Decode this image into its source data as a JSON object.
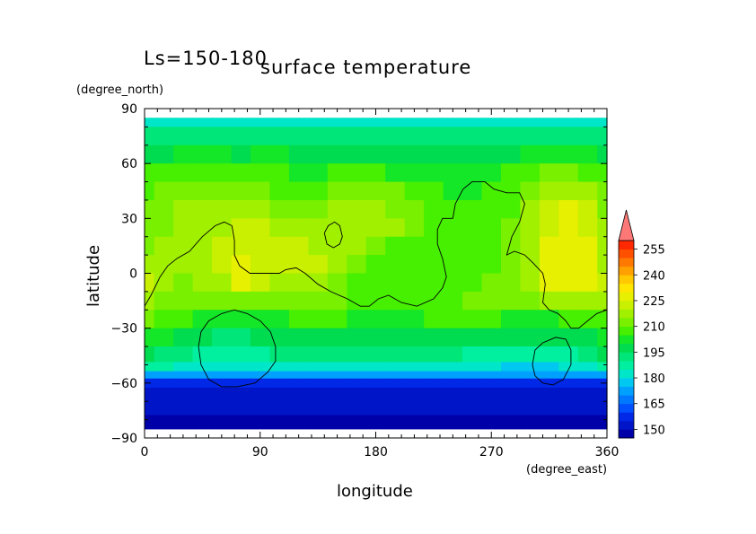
{
  "chart_data": {
    "type": "heatmap",
    "panel_label": "Ls=150-180",
    "title": "surface temperature",
    "xlabel": "longitude",
    "ylabel": "latitude",
    "x_unit": "(degree_east)",
    "y_unit": "(degree_north)",
    "xlim": [
      0,
      360
    ],
    "ylim": [
      -90,
      90
    ],
    "x_ticks": [
      0,
      90,
      180,
      270,
      360
    ],
    "y_ticks": [
      90,
      60,
      30,
      0,
      -30,
      -60,
      -90
    ],
    "lon": [
      0,
      15,
      30,
      45,
      60,
      75,
      90,
      105,
      120,
      135,
      150,
      165,
      180,
      195,
      210,
      225,
      240,
      255,
      270,
      285,
      300,
      315,
      330,
      345,
      360
    ],
    "lat": [
      85,
      75,
      65,
      55,
      45,
      35,
      25,
      15,
      5,
      -5,
      -15,
      -25,
      -35,
      -45,
      -52,
      -55,
      -60,
      -65,
      -70,
      -75,
      -80,
      -85
    ],
    "values": [
      [
        184,
        184,
        184,
        184,
        184,
        184,
        184,
        184,
        184,
        184,
        184,
        184,
        184,
        184,
        184,
        184,
        184,
        184,
        184,
        184,
        184,
        184,
        184,
        184,
        184
      ],
      [
        191,
        191,
        192,
        192,
        191,
        190,
        191,
        191,
        191,
        191,
        191,
        191,
        191,
        191,
        191,
        191,
        191,
        191,
        191,
        191,
        191,
        192,
        192,
        191,
        191
      ],
      [
        198,
        199,
        200,
        201,
        200,
        199,
        201,
        200,
        198,
        197,
        198,
        199,
        198,
        197,
        197,
        198,
        199,
        198,
        197,
        198,
        200,
        202,
        202,
        200,
        198
      ],
      [
        205,
        206,
        207,
        208,
        206,
        205,
        206,
        206,
        204,
        203,
        205,
        207,
        205,
        204,
        203,
        203,
        202,
        203,
        203,
        205,
        208,
        210,
        212,
        209,
        206
      ],
      [
        209,
        210,
        212,
        213,
        212,
        211,
        211,
        209,
        208,
        207,
        211,
        213,
        212,
        210,
        207,
        205,
        204,
        204,
        205,
        208,
        213,
        217,
        219,
        215,
        211
      ],
      [
        211,
        213,
        215,
        216,
        216,
        217,
        216,
        214,
        211,
        212,
        215,
        216,
        216,
        213,
        210,
        207,
        205,
        205,
        206,
        209,
        216,
        222,
        226,
        221,
        214
      ],
      [
        212,
        214,
        216,
        217,
        219,
        221,
        220,
        219,
        217,
        217,
        215,
        219,
        219,
        215,
        212,
        208,
        206,
        205,
        207,
        211,
        217,
        224,
        228,
        224,
        216
      ],
      [
        214,
        215,
        216,
        217,
        220,
        223,
        222,
        222,
        220,
        219,
        216,
        215,
        212,
        209,
        207,
        207,
        206,
        206,
        207,
        211,
        217,
        225,
        229,
        225,
        217
      ],
      [
        217,
        216,
        216,
        217,
        220,
        225,
        224,
        222,
        221,
        220,
        216,
        210,
        207,
        206,
        206,
        207,
        207,
        207,
        208,
        212,
        219,
        226,
        229,
        226,
        218
      ],
      [
        222,
        216,
        214,
        215,
        219,
        225,
        221,
        217,
        217,
        218,
        214,
        208,
        205,
        205,
        206,
        207,
        208,
        209,
        210,
        213,
        219,
        225,
        228,
        225,
        220
      ],
      [
        218,
        212,
        210,
        211,
        213,
        212,
        212,
        211,
        211,
        212,
        210,
        208,
        206,
        206,
        207,
        208,
        209,
        210,
        211,
        212,
        214,
        217,
        218,
        217,
        216
      ],
      [
        211,
        207,
        205,
        203,
        201,
        201,
        203,
        204,
        205,
        205,
        205,
        204,
        203,
        203,
        204,
        205,
        205,
        205,
        205,
        204,
        203,
        204,
        205,
        207,
        209
      ],
      [
        203,
        200,
        198,
        195,
        194,
        194,
        195,
        197,
        199,
        199,
        199,
        199,
        198,
        198,
        199,
        199,
        198,
        197,
        196,
        195,
        195,
        196,
        197,
        199,
        201
      ],
      [
        197,
        194,
        191,
        189,
        188,
        188,
        189,
        190,
        192,
        192,
        192,
        192,
        191,
        191,
        191,
        191,
        190,
        189,
        188,
        187,
        187,
        187,
        189,
        192,
        195
      ],
      [
        189,
        187,
        184,
        183,
        182,
        181,
        182,
        183,
        184,
        184,
        184,
        184,
        184,
        183,
        183,
        183,
        182,
        181,
        180,
        178,
        176,
        177,
        180,
        184,
        187
      ],
      [
        171,
        171,
        170,
        170,
        170,
        170,
        170,
        170,
        170,
        170,
        170,
        170,
        170,
        170,
        170,
        170,
        170,
        170,
        170,
        170,
        170,
        170,
        170,
        170,
        171
      ],
      [
        157,
        157,
        157,
        157,
        157,
        157,
        157,
        157,
        157,
        157,
        157,
        157,
        157,
        157,
        157,
        157,
        157,
        157,
        157,
        157,
        157,
        157,
        157,
        157,
        157
      ],
      [
        152,
        152,
        152,
        152,
        152,
        152,
        152,
        152,
        152,
        152,
        152,
        152,
        152,
        152,
        152,
        152,
        152,
        152,
        152,
        152,
        152,
        152,
        152,
        152,
        152
      ],
      [
        150,
        150,
        150,
        150,
        150,
        150,
        150,
        150,
        150,
        150,
        150,
        150,
        150,
        150,
        150,
        150,
        150,
        150,
        150,
        150,
        150,
        150,
        150,
        150,
        150
      ],
      [
        150,
        150,
        150,
        150,
        150,
        150,
        150,
        150,
        150,
        150,
        150,
        150,
        150,
        150,
        150,
        150,
        150,
        150,
        150,
        150,
        150,
        150,
        150,
        150,
        150
      ],
      [
        147,
        147,
        147,
        147,
        147,
        147,
        147,
        147,
        147,
        147,
        147,
        147,
        147,
        147,
        147,
        147,
        147,
        147,
        147,
        147,
        147,
        147,
        147,
        147,
        147
      ],
      [
        146,
        146,
        146,
        146,
        146,
        146,
        146,
        146,
        146,
        146,
        146,
        146,
        146,
        146,
        146,
        146,
        146,
        146,
        146,
        146,
        146,
        146,
        146,
        146,
        146
      ]
    ],
    "legend": {
      "placement": "right",
      "levels": [
        145,
        150,
        155,
        160,
        165,
        170,
        175,
        180,
        185,
        190,
        195,
        200,
        205,
        210,
        215,
        220,
        225,
        230,
        235,
        240,
        245,
        250,
        255,
        260
      ],
      "colors": [
        "#0000a8",
        "#0014c8",
        "#0028e6",
        "#0050ff",
        "#0078ff",
        "#00a0ff",
        "#00c8f0",
        "#00e6c8",
        "#00f0a0",
        "#00e678",
        "#00dc50",
        "#14e628",
        "#46f000",
        "#78f000",
        "#a0f000",
        "#c8f000",
        "#e6f000",
        "#ffe600",
        "#ffc800",
        "#ffa000",
        "#ff7800",
        "#ff5000",
        "#ff2800"
      ],
      "tick_labels": [
        "150",
        "165",
        "180",
        "195",
        "210",
        "225",
        "240",
        "255"
      ],
      "tick_values": [
        150,
        165,
        180,
        195,
        210,
        225,
        240,
        255
      ],
      "extend": "max",
      "extend_color": "#ff7878"
    },
    "contour_color": "#000000",
    "contours": [
      [
        [
          0,
          -18
        ],
        [
          5,
          -12
        ],
        [
          12,
          -2
        ],
        [
          18,
          4
        ],
        [
          25,
          8
        ],
        [
          35,
          12
        ],
        [
          45,
          20
        ],
        [
          55,
          26
        ],
        [
          62,
          28
        ],
        [
          68,
          26
        ],
        [
          70,
          18
        ],
        [
          70,
          10
        ],
        [
          74,
          4
        ],
        [
          82,
          0
        ],
        [
          95,
          0
        ],
        [
          105,
          0
        ],
        [
          110,
          2
        ],
        [
          118,
          3
        ],
        [
          125,
          0
        ],
        [
          135,
          -6
        ],
        [
          145,
          -10
        ],
        [
          158,
          -14
        ],
        [
          168,
          -18
        ],
        [
          175,
          -18
        ],
        [
          182,
          -14
        ],
        [
          190,
          -12
        ],
        [
          200,
          -16
        ],
        [
          212,
          -18
        ],
        [
          225,
          -14
        ],
        [
          232,
          -8
        ],
        [
          235,
          -2
        ],
        [
          232,
          8
        ],
        [
          228,
          16
        ],
        [
          228,
          24
        ],
        [
          232,
          30
        ],
        [
          240,
          30
        ],
        [
          242,
          38
        ],
        [
          248,
          46
        ],
        [
          255,
          50
        ],
        [
          265,
          50
        ],
        [
          272,
          46
        ],
        [
          282,
          44
        ],
        [
          292,
          44
        ],
        [
          296,
          38
        ],
        [
          292,
          28
        ],
        [
          286,
          20
        ],
        [
          282,
          10
        ],
        [
          288,
          12
        ],
        [
          296,
          10
        ],
        [
          302,
          6
        ],
        [
          310,
          0
        ],
        [
          312,
          -6
        ],
        [
          310,
          -16
        ],
        [
          315,
          -20
        ],
        [
          322,
          -22
        ],
        [
          328,
          -26
        ],
        [
          332,
          -30
        ],
        [
          338,
          -30
        ],
        [
          345,
          -26
        ],
        [
          352,
          -22
        ],
        [
          360,
          -20
        ]
      ],
      [
        [
          140,
          22
        ],
        [
          143,
          26
        ],
        [
          148,
          28
        ],
        [
          152,
          26
        ],
        [
          154,
          20
        ],
        [
          152,
          16
        ],
        [
          147,
          14
        ],
        [
          142,
          16
        ],
        [
          140,
          22
        ]
      ],
      [
        [
          42,
          -40
        ],
        [
          44,
          -32
        ],
        [
          50,
          -26
        ],
        [
          60,
          -22
        ],
        [
          70,
          -20
        ],
        [
          80,
          -22
        ],
        [
          90,
          -26
        ],
        [
          98,
          -32
        ],
        [
          102,
          -40
        ],
        [
          102,
          -48
        ],
        [
          96,
          -54
        ],
        [
          86,
          -60
        ],
        [
          72,
          -62
        ],
        [
          60,
          -62
        ],
        [
          50,
          -58
        ],
        [
          44,
          -50
        ],
        [
          42,
          -40
        ]
      ],
      [
        [
          304,
          -42
        ],
        [
          310,
          -38
        ],
        [
          320,
          -35
        ],
        [
          328,
          -36
        ],
        [
          332,
          -42
        ],
        [
          332,
          -50
        ],
        [
          326,
          -58
        ],
        [
          318,
          -61
        ],
        [
          310,
          -60
        ],
        [
          304,
          -56
        ],
        [
          302,
          -50
        ],
        [
          304,
          -42
        ]
      ]
    ]
  }
}
